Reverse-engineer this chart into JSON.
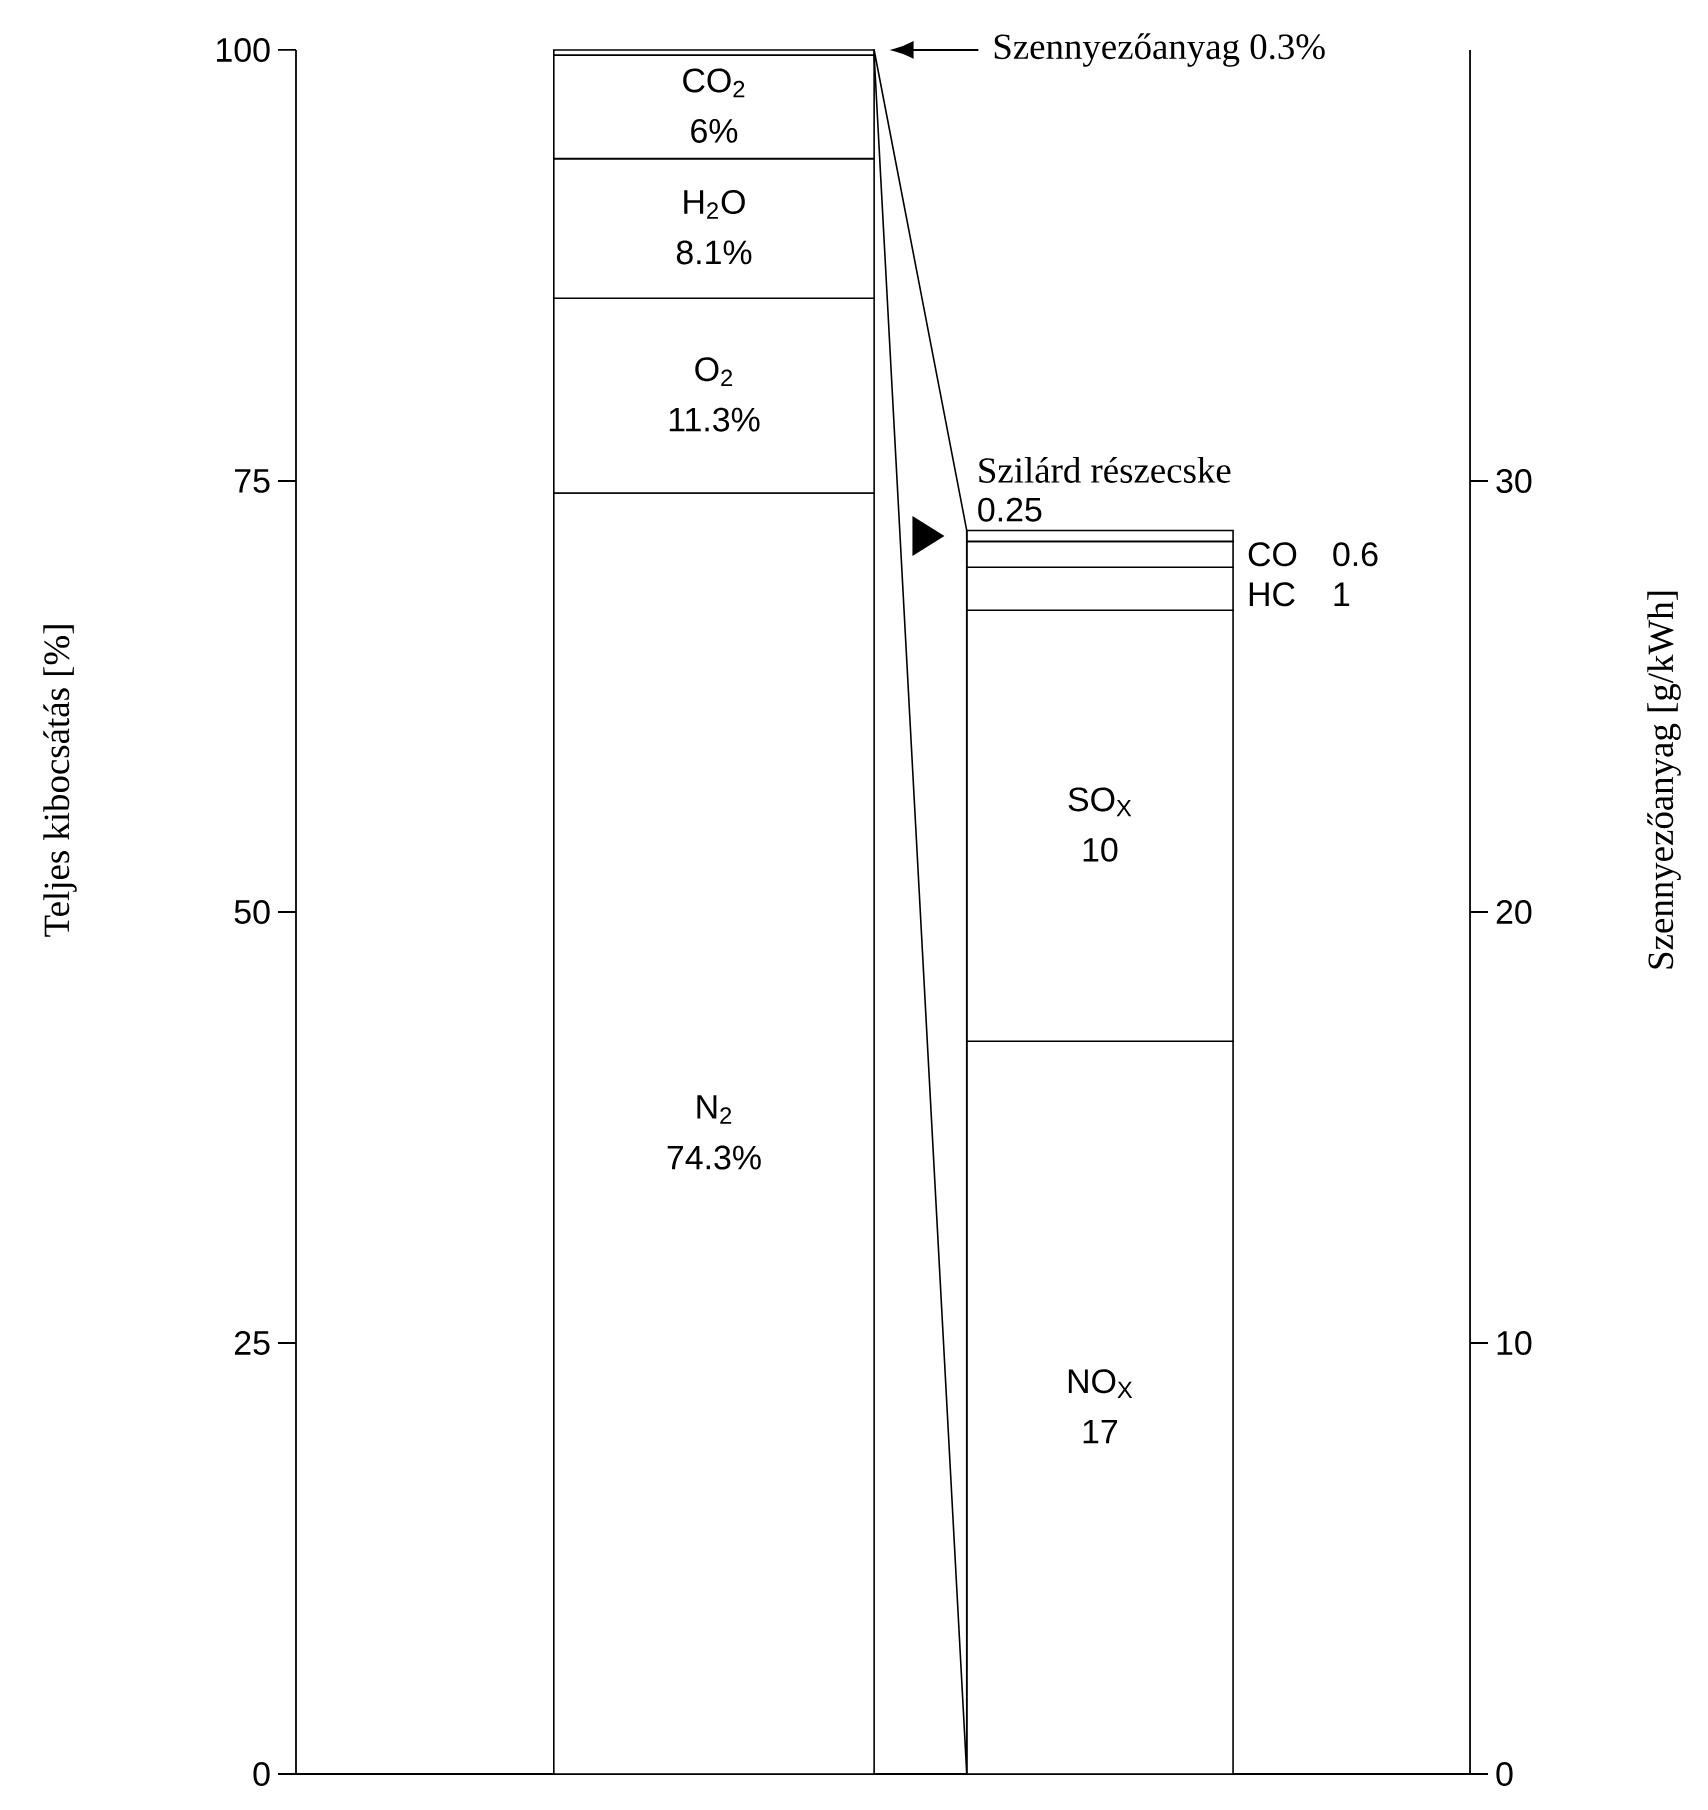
{
  "chart_data": {
    "type": "bar",
    "stacked": true,
    "categories": [
      null,
      null
    ],
    "ylabel": "Teljes kibocsátás [%]",
    "y2label": "Szennyezőanyag [g/kWh]",
    "ylim": [
      0,
      100
    ],
    "yticks": [
      0,
      25,
      50,
      75,
      100
    ],
    "y2lim": [
      0,
      40
    ],
    "y2ticks": [
      0,
      10,
      20,
      30
    ],
    "annotations": [
      "0.3%",
      "1",
      "0.6"
    ],
    "series": [
      {
        "name": "N$_{2}$",
        "color": "#ffffff",
        "values": [
          74.3,
          null
        ],
        "value_labels": [
          "74.3%",
          null
        ]
      },
      {
        "name": "O$_{2}$",
        "color": "#ffffff",
        "values": [
          11.3,
          null
        ],
        "value_labels": [
          "11.3%",
          null
        ]
      },
      {
        "name": "H$_{2}$O",
        "color": "#ffffff",
        "values": [
          8.1,
          null
        ],
        "value_labels": [
          "8.1%",
          null
        ]
      },
      {
        "name": "CO$_{2}$",
        "color": "#ffffff",
        "values": [
          6,
          null
        ],
        "value_labels": [
          "6%",
          null
        ]
      },
      {
        "name": "Szennyezőanyag",
        "color": "#ffffff",
        "values": [
          0.3,
          null
        ]
      },
      {
        "name": "NO$_{X}$",
        "color": "#ffffff",
        "axis": "y2",
        "values": [
          null,
          17
        ],
        "value_labels": [
          null,
          "17"
        ]
      },
      {
        "name": "SO$_{X}$",
        "color": "#ffffff",
        "axis": "y2",
        "values": [
          null,
          10
        ],
        "value_labels": [
          null,
          "10"
        ]
      },
      {
        "name": "HC",
        "color": "#ffffff",
        "axis": "y2",
        "values": [
          null,
          1
        ]
      },
      {
        "name": "CO",
        "color": "#ffffff",
        "axis": "y2",
        "values": [
          null,
          0.6
        ]
      },
      {
        "name": "Szilárd részecske",
        "color": "#ffffff",
        "axis": "y2",
        "values": [
          null,
          0.25
        ],
        "value_labels": [
          null,
          "0.25"
        ]
      }
    ]
  }
}
